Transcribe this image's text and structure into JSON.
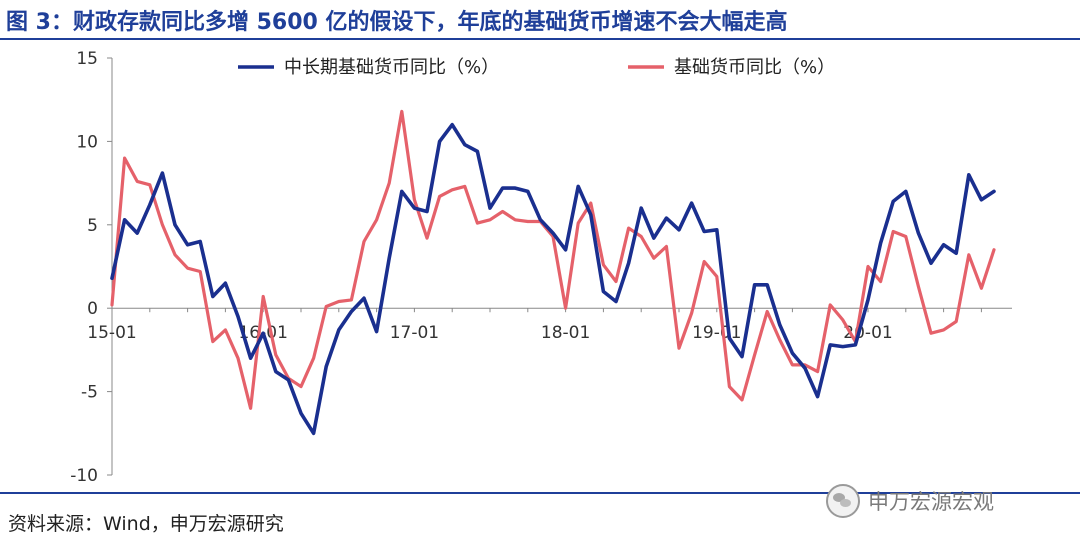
{
  "title": "图 3：财政存款同比多增 5600 亿的假设下，年底的基础货币增速不会大幅走高",
  "source": "资料来源：Wind，申万宏源研究",
  "watermark": "申万宏源宏观",
  "chart_data": {
    "type": "line",
    "y_range": [
      -10,
      15
    ],
    "y_ticks": [
      15,
      10,
      5,
      0,
      -5,
      -10
    ],
    "x_ticks": [
      {
        "label": "15-01",
        "index": 0
      },
      {
        "label": "16-01",
        "index": 12
      },
      {
        "label": "17-01",
        "index": 24
      },
      {
        "label": "18-01",
        "index": 36
      },
      {
        "label": "19-01",
        "index": 48
      },
      {
        "label": "20-01",
        "index": 60
      }
    ],
    "legend": "top",
    "series": [
      {
        "name": "中长期基础货币同比（%）",
        "color": "#1a2f8f",
        "values": [
          1.8,
          5.3,
          4.5,
          6.2,
          8.1,
          5.0,
          3.8,
          4.0,
          0.7,
          1.5,
          -0.5,
          -3.0,
          -1.5,
          -3.8,
          -4.3,
          -6.3,
          -7.5,
          -3.5,
          -1.3,
          -0.2,
          0.6,
          -1.4,
          3.0,
          7.0,
          6.0,
          5.8,
          10.0,
          11.0,
          9.8,
          9.4,
          6.0,
          7.2,
          7.2,
          7.0,
          5.3,
          4.5,
          3.5,
          7.3,
          5.6,
          1.0,
          0.4,
          2.7,
          6.0,
          4.2,
          5.4,
          4.7,
          6.3,
          4.6,
          4.7,
          -1.8,
          -2.9,
          1.4,
          1.4,
          -1.0,
          -2.7,
          -3.6,
          -5.3,
          -2.2,
          -2.3,
          -2.2,
          0.5,
          3.9,
          6.4,
          7.0,
          4.5,
          2.7,
          3.8,
          3.3,
          8.0,
          6.5,
          7.0
        ]
      },
      {
        "name": "基础货币同比（%）",
        "color": "#e5616a",
        "values": [
          0.2,
          9.0,
          7.6,
          7.4,
          5.0,
          3.2,
          2.4,
          2.2,
          -2.0,
          -1.3,
          -3.0,
          -6.0,
          0.7,
          -2.8,
          -4.2,
          -4.7,
          -3.0,
          0.1,
          0.4,
          0.5,
          4.0,
          5.3,
          7.5,
          11.8,
          6.5,
          4.2,
          6.7,
          7.1,
          7.3,
          5.1,
          5.3,
          5.8,
          5.3,
          5.2,
          5.2,
          4.3,
          0.0,
          5.1,
          6.3,
          2.6,
          1.6,
          4.8,
          4.3,
          3.0,
          3.7,
          -2.4,
          -0.3,
          2.8,
          1.9,
          -4.7,
          -5.5,
          -2.8,
          -0.2,
          -1.9,
          -3.4,
          -3.4,
          -3.8,
          0.2,
          -0.7,
          -2.0,
          2.5,
          1.6,
          4.6,
          4.3,
          1.3,
          -1.5,
          -1.3,
          -0.8,
          3.2,
          1.2,
          3.5
        ]
      }
    ]
  }
}
